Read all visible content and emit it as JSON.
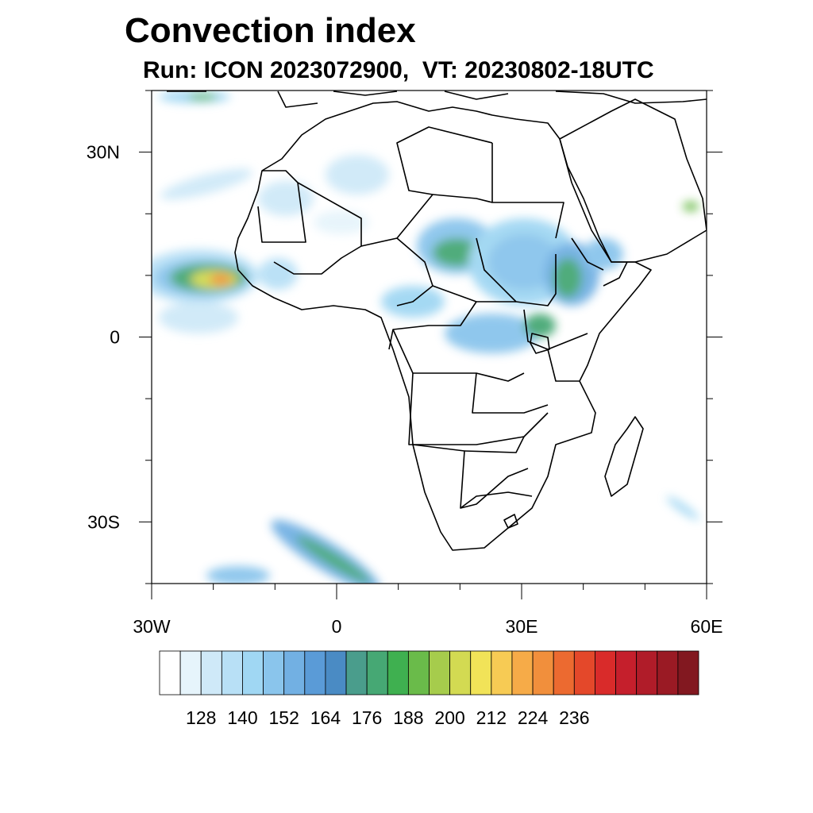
{
  "title": "Convection index",
  "subtitle": "Run: ICON 2023072900,  VT: 20230802-18UTC",
  "map": {
    "region": "Africa",
    "lon_range": [
      -30,
      60
    ],
    "lat_range": [
      -40,
      40
    ],
    "lat_labels": [
      {
        "lat": 30,
        "text": "30N"
      },
      {
        "lat": 0,
        "text": "0"
      },
      {
        "lat": -30,
        "text": "30S"
      }
    ],
    "lon_labels": [
      {
        "lon": -30,
        "text": "30W"
      },
      {
        "lon": 0,
        "text": "0"
      },
      {
        "lon": 30,
        "text": "30E"
      },
      {
        "lon": 60,
        "text": "60E"
      }
    ],
    "minor_lat_ticks": [
      -40,
      -20,
      -10,
      10,
      20,
      40
    ],
    "minor_lon_ticks": [
      -20,
      -10,
      10,
      20,
      40,
      50
    ],
    "features": [
      {
        "name": "atlantic-itcz-max",
        "lon": -18,
        "lat": 10,
        "level": "high"
      },
      {
        "name": "sahel-band",
        "lon": 25,
        "lat": 12,
        "level": "moderate"
      },
      {
        "name": "ethiopian-highlands",
        "lon": 37,
        "lat": 10,
        "level": "moderate"
      },
      {
        "name": "lake-victoria",
        "lon": 33,
        "lat": 1,
        "level": "moderate"
      },
      {
        "name": "southern-ocean-front",
        "lon": -2,
        "lat": -35,
        "level": "moderate"
      }
    ]
  },
  "colorbar": {
    "labels": [
      "128",
      "140",
      "152",
      "164",
      "176",
      "188",
      "200",
      "212",
      "224",
      "236"
    ],
    "colors": [
      "#ffffff",
      "#e6f4fb",
      "#cfe9f8",
      "#b8e0f6",
      "#a0d7f3",
      "#8ac5ec",
      "#72b0e3",
      "#5a9bd7",
      "#4a8bc4",
      "#4a9d8c",
      "#46a874",
      "#3fb050",
      "#6abb4a",
      "#a6cc4c",
      "#d3da52",
      "#f1e358",
      "#f7cb54",
      "#f6ab48",
      "#f18f3c",
      "#ec6a30",
      "#e4482a",
      "#d92b2a",
      "#c51f2c",
      "#b01c29",
      "#9a1a24",
      "#821820"
    ]
  }
}
